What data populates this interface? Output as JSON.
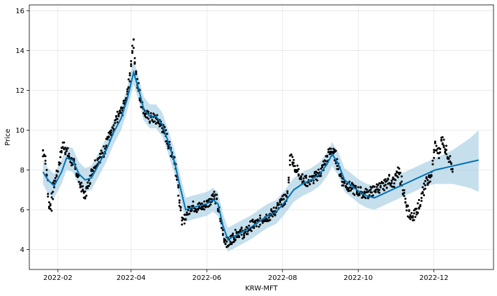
{
  "chart_data": {
    "type": "line",
    "xlabel": "KRW-MFT",
    "ylabel": "Price",
    "x_range": [
      "2022-01-09",
      "2023-01-18"
    ],
    "ylim": [
      3.0,
      16.3
    ],
    "grid": true,
    "x_ticks": [
      {
        "date": "2022-02-01",
        "label": "2022-02"
      },
      {
        "date": "2022-04-01",
        "label": "2022-04"
      },
      {
        "date": "2022-06-01",
        "label": "2022-06"
      },
      {
        "date": "2022-08-01",
        "label": "2022-08"
      },
      {
        "date": "2022-10-01",
        "label": "2022-10"
      },
      {
        "date": "2022-12-01",
        "label": "2022-12"
      }
    ],
    "y_ticks": [
      4,
      6,
      8,
      10,
      12,
      14,
      16
    ],
    "colors": {
      "observed": "#000000",
      "forecast": "#0072b2",
      "interval": "#9ecae1",
      "grid": "#e6e6e6"
    },
    "series": [
      {
        "kind": "observed",
        "points": [
          [
            "2022-01-20",
            9.0
          ],
          [
            "2022-01-22",
            8.7
          ],
          [
            "2022-01-24",
            7.4
          ],
          [
            "2022-01-25",
            6.3
          ],
          [
            "2022-01-27",
            6.2
          ],
          [
            "2022-01-29",
            7.3
          ],
          [
            "2022-02-01",
            7.9
          ],
          [
            "2022-02-04",
            8.9
          ],
          [
            "2022-02-06",
            9.3
          ],
          [
            "2022-02-10",
            8.7
          ],
          [
            "2022-02-14",
            8.3
          ],
          [
            "2022-02-17",
            7.8
          ],
          [
            "2022-02-20",
            7.2
          ],
          [
            "2022-02-23",
            6.7
          ],
          [
            "2022-02-26",
            7.3
          ],
          [
            "2022-03-01",
            8.0
          ],
          [
            "2022-03-06",
            8.6
          ],
          [
            "2022-03-10",
            8.8
          ],
          [
            "2022-03-13",
            9.6
          ],
          [
            "2022-03-17",
            9.8
          ],
          [
            "2022-03-21",
            10.6
          ],
          [
            "2022-03-25",
            11.0
          ],
          [
            "2022-03-29",
            11.8
          ],
          [
            "2022-04-01",
            13.0
          ],
          [
            "2022-04-03",
            14.6
          ],
          [
            "2022-04-05",
            13.1
          ],
          [
            "2022-04-08",
            11.8
          ],
          [
            "2022-04-12",
            10.9
          ],
          [
            "2022-04-16",
            10.6
          ],
          [
            "2022-04-20",
            10.6
          ],
          [
            "2022-04-24",
            10.4
          ],
          [
            "2022-04-28",
            10.0
          ],
          [
            "2022-05-02",
            9.2
          ],
          [
            "2022-05-06",
            8.6
          ],
          [
            "2022-05-09",
            7.4
          ],
          [
            "2022-05-11",
            6.0
          ],
          [
            "2022-05-13",
            5.3
          ],
          [
            "2022-05-16",
            5.8
          ],
          [
            "2022-05-20",
            6.2
          ],
          [
            "2022-05-25",
            6.1
          ],
          [
            "2022-05-30",
            6.2
          ],
          [
            "2022-06-03",
            6.4
          ],
          [
            "2022-06-07",
            6.8
          ],
          [
            "2022-06-09",
            6.5
          ],
          [
            "2022-06-12",
            5.6
          ],
          [
            "2022-06-15",
            4.6
          ],
          [
            "2022-06-18",
            4.3
          ],
          [
            "2022-06-22",
            4.6
          ],
          [
            "2022-06-27",
            4.9
          ],
          [
            "2022-07-02",
            4.8
          ],
          [
            "2022-07-07",
            5.2
          ],
          [
            "2022-07-12",
            5.3
          ],
          [
            "2022-07-17",
            5.6
          ],
          [
            "2022-07-22",
            5.7
          ],
          [
            "2022-07-27",
            6.0
          ],
          [
            "2022-08-01",
            6.4
          ],
          [
            "2022-08-05",
            6.6
          ],
          [
            "2022-08-08",
            8.8
          ],
          [
            "2022-08-11",
            8.2
          ],
          [
            "2022-08-14",
            7.9
          ],
          [
            "2022-08-18",
            7.5
          ],
          [
            "2022-08-22",
            7.4
          ],
          [
            "2022-08-27",
            7.6
          ],
          [
            "2022-09-01",
            7.9
          ],
          [
            "2022-09-05",
            8.4
          ],
          [
            "2022-09-09",
            9.0
          ],
          [
            "2022-09-13",
            8.7
          ],
          [
            "2022-09-16",
            8.0
          ],
          [
            "2022-09-19",
            7.4
          ],
          [
            "2022-09-23",
            7.2
          ],
          [
            "2022-09-28",
            7.0
          ],
          [
            "2022-10-03",
            6.9
          ],
          [
            "2022-10-07",
            6.8
          ],
          [
            "2022-10-12",
            6.9
          ],
          [
            "2022-10-17",
            7.1
          ],
          [
            "2022-10-22",
            7.2
          ],
          [
            "2022-10-26",
            7.5
          ],
          [
            "2022-10-30",
            7.4
          ],
          [
            "2022-11-03",
            7.9
          ],
          [
            "2022-11-06",
            7.2
          ],
          [
            "2022-11-09",
            6.1
          ],
          [
            "2022-11-13",
            5.6
          ],
          [
            "2022-11-17",
            5.9
          ],
          [
            "2022-11-21",
            6.5
          ],
          [
            "2022-11-25",
            7.4
          ],
          [
            "2022-11-29",
            7.6
          ],
          [
            "2022-12-02",
            9.2
          ],
          [
            "2022-12-05",
            8.8
          ],
          [
            "2022-12-08",
            9.6
          ],
          [
            "2022-12-11",
            9.0
          ],
          [
            "2022-12-14",
            8.6
          ],
          [
            "2022-12-17",
            7.7
          ]
        ]
      },
      {
        "kind": "forecast",
        "points": [
          [
            "2022-01-20",
            7.9
          ],
          [
            "2022-01-24",
            7.5
          ],
          [
            "2022-01-29",
            7.2
          ],
          [
            "2022-02-04",
            7.9
          ],
          [
            "2022-02-08",
            8.6
          ],
          [
            "2022-02-13",
            8.5
          ],
          [
            "2022-02-18",
            7.8
          ],
          [
            "2022-02-23",
            7.5
          ],
          [
            "2022-02-28",
            7.6
          ],
          [
            "2022-03-06",
            8.3
          ],
          [
            "2022-03-12",
            9.0
          ],
          [
            "2022-03-18",
            9.9
          ],
          [
            "2022-03-24",
            10.6
          ],
          [
            "2022-03-29",
            11.6
          ],
          [
            "2022-04-03",
            12.9
          ],
          [
            "2022-04-07",
            12.1
          ],
          [
            "2022-04-11",
            11.1
          ],
          [
            "2022-04-16",
            10.7
          ],
          [
            "2022-04-21",
            10.7
          ],
          [
            "2022-04-26",
            10.3
          ],
          [
            "2022-05-01",
            9.4
          ],
          [
            "2022-05-06",
            8.4
          ],
          [
            "2022-05-10",
            7.3
          ],
          [
            "2022-05-15",
            6.0
          ],
          [
            "2022-05-20",
            6.1
          ],
          [
            "2022-05-26",
            6.2
          ],
          [
            "2022-06-01",
            6.3
          ],
          [
            "2022-06-06",
            6.5
          ],
          [
            "2022-06-10",
            6.3
          ],
          [
            "2022-06-14",
            5.2
          ],
          [
            "2022-06-18",
            4.5
          ],
          [
            "2022-06-24",
            4.7
          ],
          [
            "2022-06-30",
            4.9
          ],
          [
            "2022-07-06",
            5.1
          ],
          [
            "2022-07-13",
            5.4
          ],
          [
            "2022-07-20",
            5.7
          ],
          [
            "2022-07-27",
            5.9
          ],
          [
            "2022-08-03",
            6.4
          ],
          [
            "2022-08-10",
            7.0
          ],
          [
            "2022-08-17",
            7.3
          ],
          [
            "2022-08-24",
            7.5
          ],
          [
            "2022-08-31",
            7.8
          ],
          [
            "2022-09-06",
            8.3
          ],
          [
            "2022-09-10",
            8.8
          ],
          [
            "2022-09-15",
            8.3
          ],
          [
            "2022-09-20",
            7.5
          ],
          [
            "2022-09-26",
            7.2
          ],
          [
            "2022-10-02",
            6.9
          ],
          [
            "2022-10-08",
            6.7
          ],
          [
            "2022-10-14",
            6.6
          ],
          [
            "2022-10-21",
            6.8
          ],
          [
            "2022-10-28",
            7.0
          ],
          [
            "2022-11-04",
            7.2
          ],
          [
            "2022-11-11",
            7.4
          ],
          [
            "2022-11-18",
            7.6
          ],
          [
            "2022-11-25",
            7.8
          ],
          [
            "2022-12-02",
            8.0
          ],
          [
            "2022-12-09",
            8.1
          ],
          [
            "2022-12-16",
            8.2
          ],
          [
            "2022-12-23",
            8.3
          ],
          [
            "2022-12-30",
            8.4
          ],
          [
            "2023-01-06",
            8.5
          ]
        ],
        "band": [
          [
            "2022-01-20",
            7.3,
            8.5
          ],
          [
            "2022-01-24",
            6.8,
            8.1
          ],
          [
            "2022-01-29",
            6.6,
            7.8
          ],
          [
            "2022-02-04",
            7.3,
            8.5
          ],
          [
            "2022-02-08",
            8.0,
            9.2
          ],
          [
            "2022-02-13",
            7.9,
            9.1
          ],
          [
            "2022-02-18",
            7.2,
            8.4
          ],
          [
            "2022-02-23",
            6.9,
            8.1
          ],
          [
            "2022-02-28",
            7.0,
            8.2
          ],
          [
            "2022-03-06",
            7.7,
            8.9
          ],
          [
            "2022-03-12",
            8.4,
            9.6
          ],
          [
            "2022-03-18",
            9.3,
            10.5
          ],
          [
            "2022-03-24",
            10.0,
            11.2
          ],
          [
            "2022-03-29",
            11.0,
            12.2
          ],
          [
            "2022-04-03",
            12.3,
            13.5
          ],
          [
            "2022-04-07",
            11.5,
            12.7
          ],
          [
            "2022-04-11",
            10.5,
            11.7
          ],
          [
            "2022-04-16",
            10.1,
            11.3
          ],
          [
            "2022-04-21",
            10.1,
            11.3
          ],
          [
            "2022-04-26",
            9.7,
            10.9
          ],
          [
            "2022-05-01",
            8.8,
            10.0
          ],
          [
            "2022-05-06",
            7.8,
            9.0
          ],
          [
            "2022-05-10",
            6.7,
            7.9
          ],
          [
            "2022-05-15",
            5.4,
            6.6
          ],
          [
            "2022-05-20",
            5.5,
            6.7
          ],
          [
            "2022-05-26",
            5.6,
            6.8
          ],
          [
            "2022-06-01",
            5.7,
            6.9
          ],
          [
            "2022-06-06",
            5.9,
            7.1
          ],
          [
            "2022-06-10",
            5.7,
            6.9
          ],
          [
            "2022-06-14",
            4.6,
            5.8
          ],
          [
            "2022-06-18",
            3.9,
            5.1
          ],
          [
            "2022-06-24",
            4.1,
            5.3
          ],
          [
            "2022-06-30",
            4.3,
            5.5
          ],
          [
            "2022-07-06",
            4.5,
            5.7
          ],
          [
            "2022-07-13",
            4.8,
            6.0
          ],
          [
            "2022-07-20",
            5.1,
            6.3
          ],
          [
            "2022-07-27",
            5.3,
            6.5
          ],
          [
            "2022-08-03",
            5.8,
            7.0
          ],
          [
            "2022-08-10",
            6.4,
            7.6
          ],
          [
            "2022-08-17",
            6.7,
            7.9
          ],
          [
            "2022-08-24",
            6.9,
            8.1
          ],
          [
            "2022-08-31",
            7.2,
            8.4
          ],
          [
            "2022-09-06",
            7.7,
            8.9
          ],
          [
            "2022-09-10",
            8.2,
            9.4
          ],
          [
            "2022-09-15",
            7.7,
            8.9
          ],
          [
            "2022-09-20",
            6.9,
            8.1
          ],
          [
            "2022-09-26",
            6.6,
            7.8
          ],
          [
            "2022-10-02",
            6.3,
            7.5
          ],
          [
            "2022-10-08",
            6.1,
            7.3
          ],
          [
            "2022-10-14",
            6.0,
            7.2
          ],
          [
            "2022-10-21",
            6.2,
            7.4
          ],
          [
            "2022-10-28",
            6.4,
            7.6
          ],
          [
            "2022-11-04",
            6.6,
            7.8
          ],
          [
            "2022-11-11",
            6.8,
            8.0
          ],
          [
            "2022-11-18",
            7.0,
            8.2
          ],
          [
            "2022-11-25",
            7.2,
            8.4
          ],
          [
            "2022-12-02",
            7.3,
            8.6
          ],
          [
            "2022-12-09",
            7.3,
            8.8
          ],
          [
            "2022-12-16",
            7.3,
            9.0
          ],
          [
            "2022-12-23",
            7.2,
            9.3
          ],
          [
            "2022-12-30",
            7.1,
            9.6
          ],
          [
            "2023-01-06",
            6.9,
            10.0
          ]
        ]
      }
    ]
  }
}
